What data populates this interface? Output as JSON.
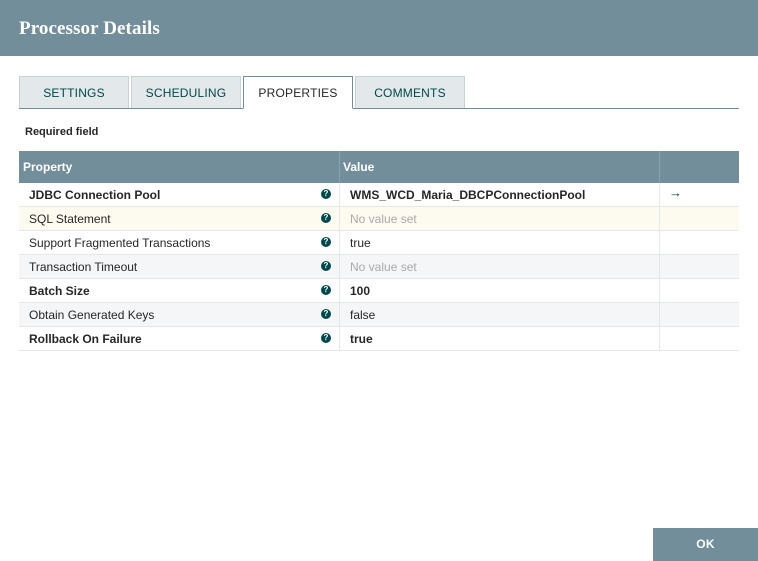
{
  "dialog": {
    "title": "Processor Details"
  },
  "tabs": [
    {
      "label": "SETTINGS",
      "active": false
    },
    {
      "label": "SCHEDULING",
      "active": false
    },
    {
      "label": "PROPERTIES",
      "active": true
    },
    {
      "label": "COMMENTS",
      "active": false
    }
  ],
  "properties": {
    "required_label": "Required field",
    "headers": {
      "property": "Property",
      "value": "Value"
    },
    "help_glyph": "?",
    "goto_glyph": "→",
    "rows": [
      {
        "name": "JDBC Connection Pool",
        "value": "WMS_WCD_Maria_DBCPConnectionPool",
        "required": true,
        "empty": false,
        "has_goto": true
      },
      {
        "name": "SQL Statement",
        "value": "No value set",
        "required": false,
        "empty": true,
        "has_goto": false,
        "highlighted": true
      },
      {
        "name": "Support Fragmented Transactions",
        "value": "true",
        "required": false,
        "empty": false,
        "has_goto": false
      },
      {
        "name": "Transaction Timeout",
        "value": "No value set",
        "required": false,
        "empty": true,
        "has_goto": false
      },
      {
        "name": "Batch Size",
        "value": "100",
        "required": true,
        "empty": false,
        "has_goto": false
      },
      {
        "name": "Obtain Generated Keys",
        "value": "false",
        "required": false,
        "empty": false,
        "has_goto": false
      },
      {
        "name": "Rollback On Failure",
        "value": "true",
        "required": true,
        "empty": false,
        "has_goto": false
      }
    ]
  },
  "footer": {
    "ok_label": "OK"
  },
  "colors": {
    "header_bg": "#728e9b",
    "accent": "#004849",
    "highlight_row": "#fdfaef"
  }
}
